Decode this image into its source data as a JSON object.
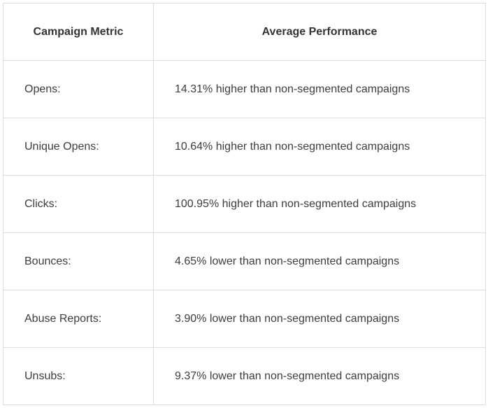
{
  "table": {
    "headers": [
      "Campaign Metric",
      "Average Performance"
    ],
    "rows": [
      {
        "metric": "Opens:",
        "performance": "14.31% higher than non-segmented campaigns"
      },
      {
        "metric": "Unique Opens:",
        "performance": "10.64% higher than non-segmented campaigns"
      },
      {
        "metric": "Clicks:",
        "performance": "100.95% higher than non-segmented campaigns"
      },
      {
        "metric": "Bounces:",
        "performance": "4.65% lower than non-segmented campaigns"
      },
      {
        "metric": "Abuse Reports:",
        "performance": "3.90% lower than non-segmented campaigns"
      },
      {
        "metric": "Unsubs:",
        "performance": "9.37% lower than non-segmented campaigns"
      }
    ]
  }
}
